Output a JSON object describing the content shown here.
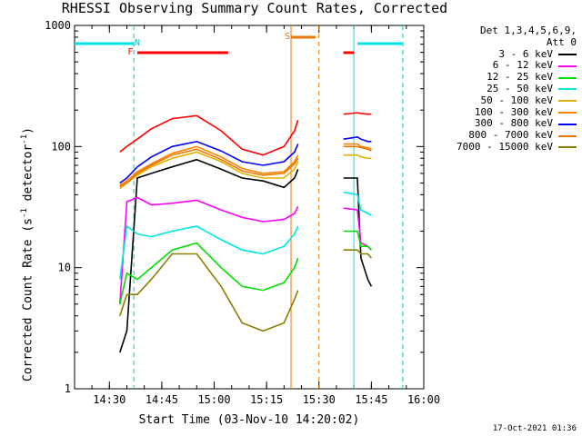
{
  "title": "RHESSI Observing Summary Count Rates, Corrected",
  "footer_date": "17-Oct-2021 01:36",
  "legend": {
    "detectors": "Det 1,3,4,5,6,9,",
    "attenuator": "Att 0"
  },
  "chart_data": {
    "type": "line",
    "title": "RHESSI Observing Summary Count Rates, Corrected",
    "xlabel": "Start Time (03-Nov-10 14:20:02)",
    "ylabel": "Corrected Count Rate (s⁻¹ detector⁻¹)",
    "ylabel_parts": {
      "main": "Corrected Count Rate (s",
      "sup1": "-1",
      "mid": " detector",
      "sup2": "-1",
      "end": ")"
    },
    "yscale": "log",
    "xlim": [
      "14:20:02",
      "16:00"
    ],
    "ylim": [
      1,
      1000
    ],
    "x_ticks": [
      "14:30",
      "14:45",
      "15:00",
      "15:15",
      "15:30",
      "15:45",
      "16:00"
    ],
    "y_ticks": [
      "1",
      "10",
      "100",
      "1000"
    ],
    "legend_position": "right",
    "series": [
      {
        "name": "3 - 6 keV",
        "color": "#000000",
        "x": [
          "14:33",
          "14:35",
          "14:38",
          "14:42",
          "14:48",
          "14:55",
          "15:02",
          "15:08",
          "15:14",
          "15:20",
          "15:23",
          "15:24",
          "15:37",
          "15:41",
          "15:42",
          "15:44",
          "15:45"
        ],
        "y": [
          2,
          3,
          55,
          60,
          68,
          78,
          65,
          55,
          52,
          46,
          55,
          65,
          55,
          55,
          12,
          8,
          7
        ]
      },
      {
        "name": "6 - 12 keV",
        "color": "#ff00ff",
        "x": [
          "14:33",
          "14:35",
          "14:38",
          "14:42",
          "14:48",
          "14:55",
          "15:02",
          "15:08",
          "15:14",
          "15:20",
          "15:23",
          "15:24",
          "15:37",
          "15:41",
          "15:42",
          "15:44",
          "15:45"
        ],
        "y": [
          5,
          35,
          38,
          33,
          34,
          36,
          30,
          26,
          24,
          25,
          28,
          32,
          31,
          30,
          16,
          15,
          14
        ]
      },
      {
        "name": "12 - 25 keV",
        "color": "#00e000",
        "x": [
          "14:33",
          "14:35",
          "14:38",
          "14:42",
          "14:48",
          "14:55",
          "15:02",
          "15:08",
          "15:14",
          "15:20",
          "15:23",
          "15:24",
          "15:37",
          "15:41",
          "15:42",
          "15:44",
          "15:45"
        ],
        "y": [
          5,
          9,
          8,
          10,
          14,
          16,
          10,
          7,
          6.5,
          7.5,
          10,
          12,
          20,
          20,
          15,
          15,
          14
        ]
      },
      {
        "name": "25 - 50 keV",
        "color": "#00e5e5",
        "x": [
          "14:33",
          "14:35",
          "14:38",
          "14:42",
          "14:48",
          "14:55",
          "15:02",
          "15:08",
          "15:14",
          "15:20",
          "15:23",
          "15:24",
          "15:37",
          "15:41",
          "15:42",
          "15:44",
          "15:45"
        ],
        "y": [
          8,
          22,
          19,
          18,
          20,
          22,
          17,
          14,
          13,
          15,
          19,
          22,
          42,
          40,
          30,
          28,
          27
        ]
      },
      {
        "name": "50 - 100 keV",
        "color": "#e0b000",
        "x": [
          "14:33",
          "14:35",
          "14:38",
          "14:42",
          "14:48",
          "14:55",
          "15:02",
          "15:08",
          "15:14",
          "15:20",
          "15:23",
          "15:24",
          "15:37",
          "15:41",
          "15:42",
          "15:44",
          "15:45"
        ],
        "y": [
          45,
          50,
          58,
          68,
          80,
          90,
          75,
          60,
          55,
          55,
          65,
          75,
          85,
          85,
          82,
          80,
          80
        ]
      },
      {
        "name": "100 - 300 keV",
        "color": "#ff7f00",
        "x": [
          "14:33",
          "14:35",
          "14:38",
          "14:42",
          "14:48",
          "14:55",
          "15:02",
          "15:08",
          "15:14",
          "15:20",
          "15:23",
          "15:24",
          "15:37",
          "15:41",
          "15:42",
          "15:44",
          "15:45"
        ],
        "y": [
          48,
          52,
          62,
          72,
          88,
          100,
          82,
          66,
          60,
          62,
          75,
          85,
          105,
          105,
          100,
          98,
          95
        ]
      },
      {
        "name": "300 - 800 keV",
        "color": "#0000ff",
        "x": [
          "14:33",
          "14:35",
          "14:38",
          "14:42",
          "14:48",
          "14:55",
          "15:02",
          "15:08",
          "15:14",
          "15:20",
          "15:23",
          "15:24",
          "15:37",
          "15:41",
          "15:42",
          "15:44",
          "15:45"
        ],
        "y": [
          50,
          55,
          68,
          82,
          100,
          110,
          92,
          75,
          70,
          75,
          90,
          105,
          115,
          120,
          115,
          110,
          110
        ]
      },
      {
        "name": "800 - 7000 keV",
        "color": "#e87800",
        "x": [
          "14:33",
          "14:35",
          "14:38",
          "14:42",
          "14:48",
          "14:55",
          "15:02",
          "15:08",
          "15:14",
          "15:20",
          "15:23",
          "15:24",
          "15:37",
          "15:41",
          "15:42",
          "15:44",
          "15:45"
        ],
        "y": [
          47,
          50,
          60,
          70,
          85,
          95,
          78,
          63,
          58,
          60,
          72,
          80,
          100,
          100,
          98,
          95,
          92
        ]
      },
      {
        "name": "7000 - 15000 keV",
        "color": "#8a8000",
        "x": [
          "14:33",
          "14:35",
          "14:38",
          "14:42",
          "14:48",
          "14:55",
          "15:02",
          "15:08",
          "15:14",
          "15:20",
          "15:23",
          "15:24",
          "15:37",
          "15:41",
          "15:42",
          "15:44",
          "15:45"
        ],
        "y": [
          4,
          6,
          6,
          8,
          13,
          13,
          7,
          3.5,
          3,
          3.5,
          5.5,
          6.5,
          14,
          14,
          13,
          13,
          12
        ]
      },
      {
        "name": "",
        "color": "#ff0000",
        "x": [
          "14:33",
          "14:35",
          "14:38",
          "14:42",
          "14:48",
          "14:55",
          "15:02",
          "15:08",
          "15:14",
          "15:20",
          "15:23",
          "15:24",
          "15:37",
          "15:41",
          "15:42",
          "15:44",
          "15:45"
        ],
        "y": [
          90,
          100,
          115,
          140,
          170,
          180,
          135,
          95,
          85,
          100,
          135,
          165,
          185,
          190,
          188,
          185,
          185
        ]
      }
    ],
    "annotations": [
      {
        "label": "N",
        "color": "#00c8c8"
      },
      {
        "label": "F",
        "color": "#ff0000"
      },
      {
        "label": "S",
        "color": "#e87800"
      }
    ],
    "status_bars": [
      {
        "color": "#00e5e5",
        "x_start": "14:20:02",
        "x_end": "14:37"
      },
      {
        "color": "#00e5e5",
        "x_start": "15:41",
        "x_end": "15:54"
      },
      {
        "color": "#ff0000",
        "x_start": "14:38",
        "x_end": "15:04"
      },
      {
        "color": "#ff0000",
        "x_start": "15:37",
        "x_end": "15:40"
      },
      {
        "color": "#e87800",
        "x_start": "15:22",
        "x_end": "15:29"
      }
    ],
    "vertical_markers": [
      {
        "x": "14:37",
        "color": "#00c8c8",
        "dashed": true
      },
      {
        "x": "15:54",
        "color": "#00c8c8",
        "dashed": true
      },
      {
        "x": "15:40",
        "color": "#00e5e5",
        "dashed": false
      },
      {
        "x": "15:22",
        "color": "#e87800",
        "dashed": false
      },
      {
        "x": "15:30",
        "color": "#e87800",
        "dashed": true
      }
    ]
  }
}
